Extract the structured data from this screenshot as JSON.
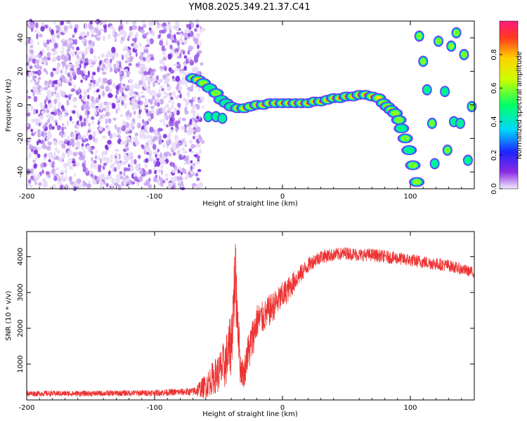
{
  "title": "YM08.2025.349.21.37.C41",
  "chart_data": [
    {
      "type": "heatmap",
      "xlabel": "Height of straight line (km)",
      "ylabel": "Frequency (Hz)",
      "xlim": [
        -200,
        150
      ],
      "ylim": [
        -50,
        50
      ],
      "x_ticks": [
        -200,
        -100,
        0,
        100
      ],
      "x_tick_labels": [
        "-200",
        "-100",
        "0",
        "100"
      ],
      "y_ticks": [
        -40,
        -20,
        0,
        20,
        40
      ],
      "y_tick_labels": [
        "-40",
        "-20",
        "0",
        "20",
        "40"
      ],
      "noise_region_x": [
        -200,
        -65
      ],
      "track": [
        {
          "x": -70,
          "y": 16,
          "v": 0.55
        },
        {
          "x": -66,
          "y": 15,
          "v": 0.7
        },
        {
          "x": -62,
          "y": 13,
          "v": 0.6
        },
        {
          "x": -57,
          "y": 10,
          "v": 0.5
        },
        {
          "x": -52,
          "y": 7,
          "v": 0.55
        },
        {
          "x": -48,
          "y": 3,
          "v": 0.45
        },
        {
          "x": -44,
          "y": 1,
          "v": 0.5
        },
        {
          "x": -40,
          "y": -1,
          "v": 0.45
        },
        {
          "x": -35,
          "y": -2,
          "v": 0.55
        },
        {
          "x": -30,
          "y": -2,
          "v": 0.7
        },
        {
          "x": -25,
          "y": -1,
          "v": 0.6
        },
        {
          "x": -20,
          "y": 0,
          "v": 0.75
        },
        {
          "x": -15,
          "y": 0,
          "v": 0.85
        },
        {
          "x": -10,
          "y": 1,
          "v": 0.8
        },
        {
          "x": -5,
          "y": 1,
          "v": 0.85
        },
        {
          "x": 0,
          "y": 1,
          "v": 0.9
        },
        {
          "x": 5,
          "y": 1,
          "v": 0.85
        },
        {
          "x": 10,
          "y": 1,
          "v": 0.9
        },
        {
          "x": 15,
          "y": 1,
          "v": 0.85
        },
        {
          "x": 20,
          "y": 1,
          "v": 0.95
        },
        {
          "x": 25,
          "y": 2,
          "v": 0.85
        },
        {
          "x": 30,
          "y": 2,
          "v": 0.9
        },
        {
          "x": 35,
          "y": 3,
          "v": 0.8
        },
        {
          "x": 40,
          "y": 4,
          "v": 0.85
        },
        {
          "x": 45,
          "y": 4,
          "v": 0.9
        },
        {
          "x": 50,
          "y": 5,
          "v": 0.85
        },
        {
          "x": 55,
          "y": 5,
          "v": 0.8
        },
        {
          "x": 60,
          "y": 6,
          "v": 0.95
        },
        {
          "x": 65,
          "y": 6,
          "v": 0.9
        },
        {
          "x": 70,
          "y": 5,
          "v": 0.85
        },
        {
          "x": 75,
          "y": 4,
          "v": 0.7
        },
        {
          "x": 79,
          "y": 1,
          "v": 0.65
        },
        {
          "x": 82,
          "y": -1,
          "v": 0.6
        },
        {
          "x": 85,
          "y": -3,
          "v": 0.55
        },
        {
          "x": 88,
          "y": -5,
          "v": 0.6
        },
        {
          "x": 91,
          "y": -9,
          "v": 0.55
        },
        {
          "x": 93,
          "y": -14,
          "v": 0.5
        },
        {
          "x": 96,
          "y": -20,
          "v": 0.55
        },
        {
          "x": 99,
          "y": -27,
          "v": 0.5
        },
        {
          "x": 102,
          "y": -36,
          "v": 0.55
        },
        {
          "x": 105,
          "y": -46,
          "v": 0.6
        }
      ],
      "spots": [
        {
          "x": -58,
          "y": -7,
          "v": 0.45
        },
        {
          "x": -52,
          "y": -7,
          "v": 0.5
        },
        {
          "x": -47,
          "y": -8,
          "v": 0.4
        },
        {
          "x": 107,
          "y": 41,
          "v": 0.55
        },
        {
          "x": 110,
          "y": 26,
          "v": 0.6
        },
        {
          "x": 113,
          "y": 9,
          "v": 0.5
        },
        {
          "x": 117,
          "y": -11,
          "v": 0.55
        },
        {
          "x": 119,
          "y": -35,
          "v": 0.45
        },
        {
          "x": 122,
          "y": 38,
          "v": 0.6
        },
        {
          "x": 127,
          "y": 8,
          "v": 0.5
        },
        {
          "x": 129,
          "y": -27,
          "v": 0.55
        },
        {
          "x": 132,
          "y": 35,
          "v": 0.6
        },
        {
          "x": 134,
          "y": -10,
          "v": 0.5
        },
        {
          "x": 136,
          "y": 43,
          "v": 0.55
        },
        {
          "x": 139,
          "y": -11,
          "v": 0.45
        },
        {
          "x": 142,
          "y": 30,
          "v": 0.6
        },
        {
          "x": 145,
          "y": -33,
          "v": 0.5
        },
        {
          "x": 148,
          "y": -1,
          "v": 0.55
        }
      ],
      "colorbar": {
        "label": "Normalized spectral amplitude",
        "range": [
          0,
          1
        ],
        "ticks": [
          0,
          0.2,
          0.4,
          0.6,
          0.8
        ],
        "tick_labels": [
          "0.0",
          "0.2",
          "0.4",
          "0.6",
          "0.8"
        ]
      }
    },
    {
      "type": "line",
      "xlabel": "Height of straight line (km)",
      "ylabel": "SNR (10 * v/v)",
      "xlim": [
        -200,
        150
      ],
      "ylim": [
        0,
        4700
      ],
      "x_ticks": [
        -200,
        -100,
        0,
        100
      ],
      "x_tick_labels": [
        "-200",
        "-100",
        "0",
        "100"
      ],
      "y_ticks": [
        1000,
        2000,
        3000,
        4000
      ],
      "y_tick_labels": [
        "1000",
        "2000",
        "3000",
        "4000"
      ],
      "color": "#ee3333",
      "envelope": {
        "x": [
          -200,
          -150,
          -100,
          -70,
          -60,
          -55,
          -50,
          -45,
          -40,
          -37,
          -35,
          -33,
          -30,
          -28,
          -25,
          -20,
          -15,
          -10,
          -5,
          0,
          5,
          10,
          15,
          20,
          25,
          30,
          40,
          50,
          60,
          70,
          80,
          90,
          100,
          110,
          120,
          130,
          140,
          150
        ],
        "y": [
          180,
          180,
          200,
          230,
          380,
          600,
          750,
          1000,
          1600,
          3500,
          2400,
          900,
          700,
          1200,
          1500,
          2200,
          2300,
          2500,
          2700,
          2900,
          3100,
          3350,
          3550,
          3750,
          3900,
          4000,
          4050,
          4100,
          4050,
          4050,
          4000,
          3950,
          3900,
          3850,
          3800,
          3750,
          3650,
          3550
        ],
        "noise": [
          80,
          80,
          90,
          110,
          350,
          450,
          550,
          700,
          900,
          1100,
          900,
          450,
          400,
          500,
          600,
          500,
          450,
          450,
          400,
          400,
          350,
          300,
          250,
          220,
          200,
          200,
          180,
          180,
          180,
          180,
          180,
          180,
          180,
          180,
          180,
          170,
          160,
          150
        ]
      }
    }
  ]
}
